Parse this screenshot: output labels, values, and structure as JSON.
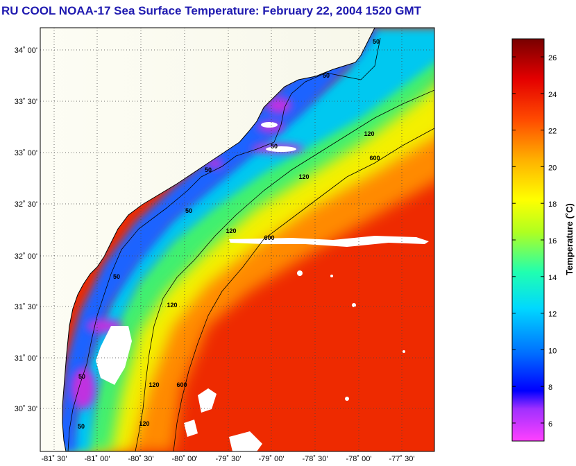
{
  "title": "RU COOL  NOAA-17  Sea Surface Temperature:  February 22, 2004 1520 GMT",
  "map": {
    "lat_labels": [
      "34˚ 00'",
      "33˚ 30'",
      "33˚ 00'",
      "32˚ 30'",
      "32˚ 00'",
      "31˚ 30'",
      "31˚ 00'",
      "30˚ 30'"
    ],
    "lon_labels": [
      "-81˚ 30'",
      "-81˚ 00'",
      "-80˚ 30'",
      "-80˚ 00'",
      "-79˚ 30'",
      "-79˚ 00'",
      "-78˚ 30'",
      "-78˚ 00'",
      "-77˚ 30'"
    ],
    "contour_labels": [
      {
        "text": "50"
      },
      {
        "text": "50"
      },
      {
        "text": "50"
      },
      {
        "text": "50"
      },
      {
        "text": "50"
      },
      {
        "text": "50"
      },
      {
        "text": "50"
      },
      {
        "text": "50"
      },
      {
        "text": "120"
      },
      {
        "text": "120"
      },
      {
        "text": "120"
      },
      {
        "text": "120"
      },
      {
        "text": "120"
      },
      {
        "text": "120"
      },
      {
        "text": "600"
      },
      {
        "text": "600"
      },
      {
        "text": "600"
      }
    ]
  },
  "colorbar": {
    "title": "Temperature (˚C)",
    "ticks": [
      "26",
      "24",
      "22",
      "20",
      "18",
      "16",
      "14",
      "12",
      "10",
      "8",
      "6"
    ],
    "colors": [
      "#ff1fff",
      "#8030ff",
      "#0000ff",
      "#0090ff",
      "#00e0ff",
      "#10ff70",
      "#d8ff00",
      "#ffff00",
      "#ffb000",
      "#ff4000",
      "#e00000",
      "#800000"
    ]
  }
}
